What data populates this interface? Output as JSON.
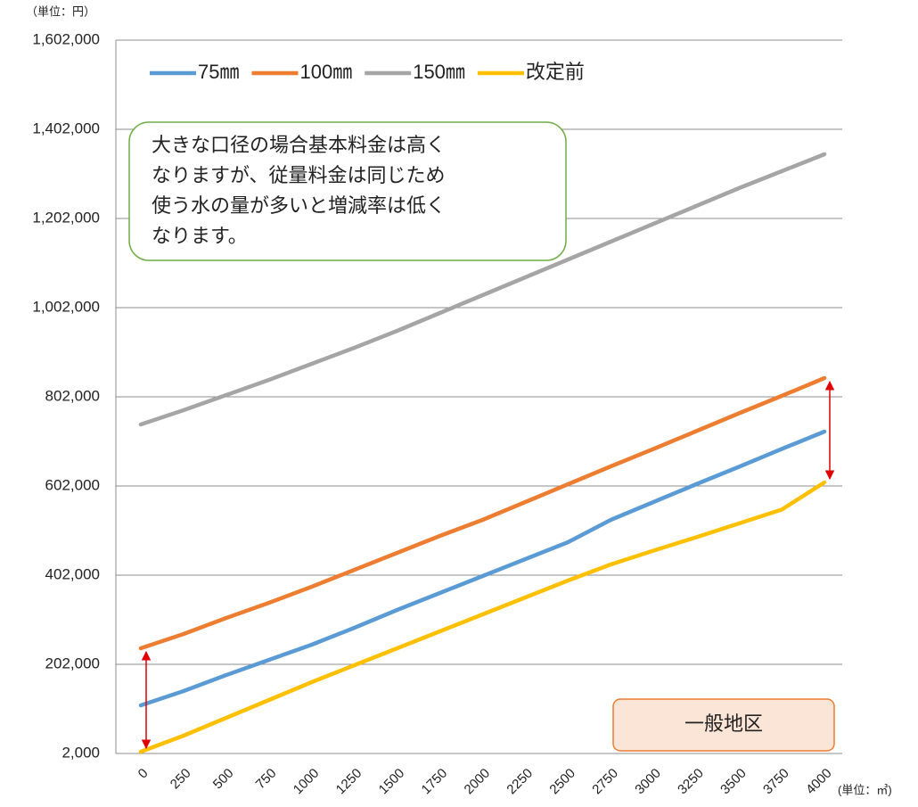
{
  "chart_data": {
    "type": "line",
    "y_unit_label": "（単位：円）",
    "x_unit_label": "(単位：㎥)",
    "categories": [
      "0",
      "250",
      "500",
      "750",
      "1000",
      "1250",
      "1500",
      "1750",
      "2000",
      "2250",
      "2500",
      "2750",
      "3000",
      "3250",
      "3500",
      "3750",
      "4000"
    ],
    "series": [
      {
        "name": "75㎜",
        "color": "#5b9bd5",
        "values": [
          110000,
          142000,
          178000,
          212000,
          246000,
          284000,
          324000,
          362000,
          400000,
          438000,
          476000,
          526000,
          566000,
          606000,
          645000,
          685000,
          724000
        ]
      },
      {
        "name": "100㎜",
        "color": "#ed7d31",
        "values": [
          238000,
          270000,
          306000,
          340000,
          376000,
          414000,
          452000,
          490000,
          526000,
          566000,
          606000,
          646000,
          685000,
          725000,
          765000,
          804000,
          844000
        ]
      },
      {
        "name": "150㎜",
        "color": "#a5a5a5",
        "values": [
          740000,
          772000,
          806000,
          840000,
          876000,
          912000,
          950000,
          990000,
          1030000,
          1070000,
          1110000,
          1150000,
          1190000,
          1230000,
          1270000,
          1308000,
          1346000
        ]
      },
      {
        "name": "改定前",
        "color": "#ffc000",
        "values": [
          6000,
          42000,
          82000,
          122000,
          162000,
          200000,
          238000,
          276000,
          314000,
          352000,
          390000,
          426000,
          457000,
          487000,
          518000,
          549000,
          610000
        ]
      }
    ],
    "ylim": [
      2000,
      1602000
    ],
    "yticks": [
      {
        "value": 2000,
        "label": "2,000"
      },
      {
        "value": 202000,
        "label": "202,000"
      },
      {
        "value": 402000,
        "label": "402,000"
      },
      {
        "value": 602000,
        "label": "602,000"
      },
      {
        "value": 802000,
        "label": "802,000"
      },
      {
        "value": 1002000,
        "label": "1,002,000"
      },
      {
        "value": 1202000,
        "label": "1,202,000"
      },
      {
        "value": 1402000,
        "label": "1,402,000"
      },
      {
        "value": 1602000,
        "label": "1,602,000"
      }
    ],
    "grid": true,
    "legend": "top-left",
    "annotation": {
      "lines": [
        "大きな口径の場合基本料金は高く",
        "なりますが、従量料金は同じため",
        "使う水の量が多いと増減率は低く",
        "なります。"
      ]
    },
    "area_label": "一般地区"
  }
}
